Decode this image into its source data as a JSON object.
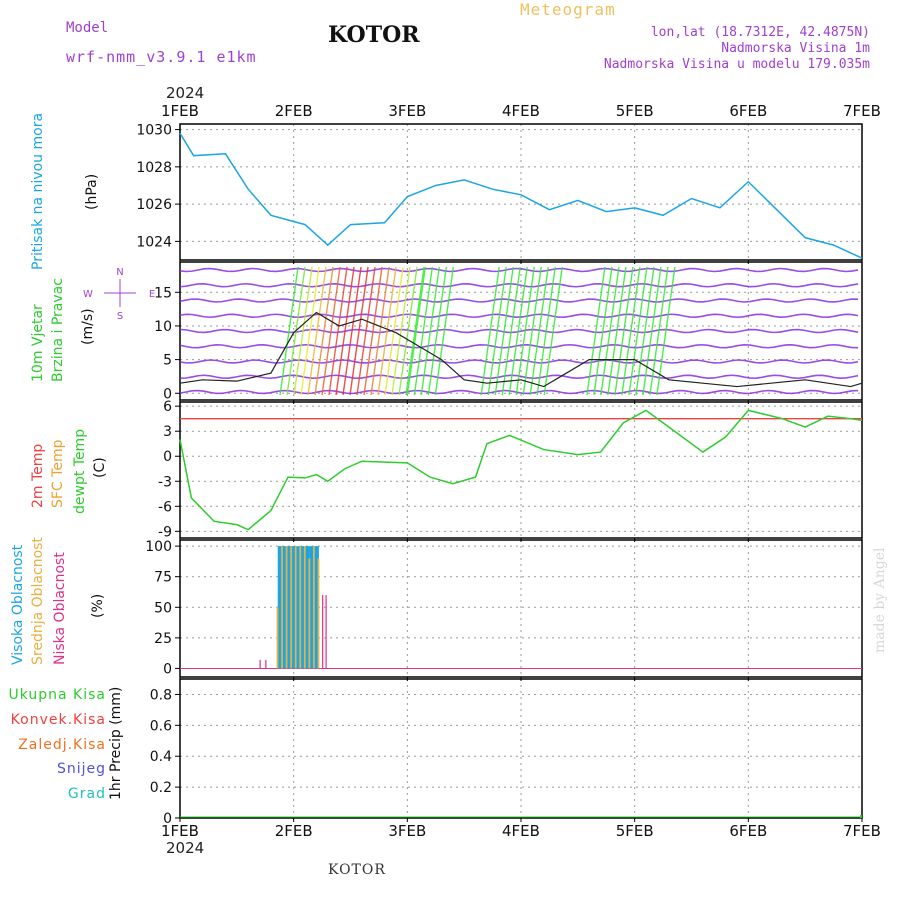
{
  "header": {
    "model_label": "Model",
    "model_name": "wrf-nmm_v3.9.1  e1km",
    "station": "KOTOR",
    "chart_title": "Meteogram",
    "lonlat": "lon,lat (18.7312E, 42.4875N)",
    "elevation": "Nadmorska Visina 1m",
    "model_elevation": "Nadmorska Visina u modelu 179.035m",
    "year_top": "2024",
    "year_bottom": "2024",
    "footer_station": "KOTOR",
    "watermark": "made by Angel"
  },
  "colors": {
    "pressure": "#1ba6e3",
    "dewpoint": "#2ecc2e",
    "temp2m": "#f04040",
    "sfc_temp": "#f0a030",
    "model_text": "#a040d0",
    "title_orange": "#f0c060",
    "high_cloud": "#1ba6e3",
    "mid_cloud": "#e8b040",
    "low_cloud": "#e0308a"
  },
  "chart_data": [
    {
      "type": "line",
      "panel": "pressure",
      "ylabel_rot": "Pritisak na nivou mora",
      "unit": "(hPa)",
      "x": [
        "1FEB",
        "2FEB",
        "3FEB",
        "4FEB",
        "5FEB",
        "6FEB",
        "7FEB"
      ],
      "yticks": [
        "1030",
        "1028",
        "1026",
        "1024"
      ],
      "ylim": [
        1023,
        1030.3
      ],
      "series": [
        {
          "values": [
            1029.8,
            1028.6,
            1028.7,
            1026.8,
            1025.4,
            1024.9,
            1023.8,
            1024.9,
            1025.0,
            1026.4,
            1027.0,
            1027.3,
            1026.8,
            1026.5,
            1025.7,
            1026.2,
            1025.6,
            1025.8,
            1025.4,
            1026.3,
            1025.8,
            1027.2,
            1025.7,
            1024.2,
            1023.8,
            1023.1
          ],
          "x": [
            0,
            0.12,
            0.4,
            0.6,
            0.8,
            1.1,
            1.3,
            1.5,
            1.8,
            2.0,
            2.25,
            2.5,
            2.75,
            3.0,
            3.25,
            3.5,
            3.75,
            4.0,
            4.25,
            4.5,
            4.75,
            5.0,
            5.25,
            5.5,
            5.75,
            6.0
          ]
        }
      ]
    },
    {
      "type": "line",
      "panel": "wind",
      "ylabel_rot_1": "10m Vjetar",
      "ylabel_rot_2": "Brzina i Pravac",
      "unit": "(m/s)",
      "yticks": [
        "15",
        "10",
        "5",
        "0"
      ],
      "ylim": [
        -1,
        19.5
      ],
      "compass": {
        "w": "W",
        "e": "E",
        "n": "N",
        "s": "S"
      },
      "series": [
        {
          "values": [
            1.5,
            2,
            1.8,
            3,
            9,
            12,
            10,
            11,
            9,
            7,
            5,
            2,
            1.5,
            2,
            1,
            3,
            5,
            5,
            2,
            1.5,
            1,
            1.5,
            2,
            1.5,
            1,
            1.5
          ],
          "x": [
            0,
            0.2,
            0.5,
            0.8,
            1.0,
            1.2,
            1.4,
            1.6,
            1.9,
            2.1,
            2.3,
            2.5,
            2.7,
            3.0,
            3.2,
            3.4,
            3.6,
            4.0,
            4.3,
            4.6,
            4.9,
            5.2,
            5.5,
            5.7,
            5.9,
            6.0
          ]
        }
      ]
    },
    {
      "type": "line",
      "panel": "temperature",
      "ylabel_rot_1": "2m Temp",
      "ylabel_rot_2": "SFC Temp",
      "ylabel_rot_3": "dewpt Temp",
      "unit": "(C)",
      "yticks": [
        "6",
        "3",
        "0",
        "-3",
        "-6",
        "-9"
      ],
      "ylim": [
        -9.8,
        6.5
      ],
      "series": [
        {
          "values": [
            2,
            -5,
            -7.8,
            -8.2,
            -8.8,
            -6.5,
            -2.5,
            -2.6,
            -2.2,
            -3.0,
            -1.5,
            -0.6,
            -0.8,
            -2.5,
            -3.3,
            -2.5,
            1.5,
            2.5,
            0.8,
            0.2,
            0.5,
            4.0,
            5.5,
            3.5,
            0.5,
            2.3,
            5.5,
            4.5,
            3.5,
            4.8,
            4.5,
            4.3
          ],
          "x": [
            0,
            0.1,
            0.3,
            0.5,
            0.6,
            0.8,
            0.95,
            1.1,
            1.2,
            1.3,
            1.45,
            1.6,
            2.0,
            2.2,
            2.4,
            2.6,
            2.7,
            2.9,
            3.2,
            3.5,
            3.7,
            3.9,
            4.1,
            4.3,
            4.6,
            4.8,
            5.0,
            5.3,
            5.5,
            5.7,
            5.9,
            6.0
          ]
        },
        {
          "values": [
            4.5,
            4.5,
            4.5,
            4.5,
            4.5,
            4.5,
            4.5,
            4.5,
            4.5,
            4.5,
            4.5
          ],
          "x": [
            0,
            0.6,
            1.1,
            1.2,
            2.0,
            2.5,
            3.0,
            3.5,
            4.0,
            5.0,
            6.0
          ]
        }
      ]
    },
    {
      "type": "bar",
      "panel": "cloud",
      "ylabel_rot_1": "Visoka Oblacnost",
      "ylabel_rot_2": "Srednja Oblacnost",
      "ylabel_rot_3": "Niska Oblacnost",
      "unit": "(%)",
      "yticks": [
        "100",
        "75",
        "50",
        "25",
        "0"
      ],
      "ylim": [
        -7,
        105
      ],
      "series": [
        {
          "name": "Visoka Oblacnost",
          "x": [
            0.86,
            0.88,
            0.9,
            0.92,
            0.94,
            0.96,
            0.98,
            1.0,
            1.02,
            1.04,
            1.06,
            1.08,
            1.1,
            1.12,
            1.14,
            1.16,
            1.18,
            1.2
          ],
          "values": [
            100,
            100,
            100,
            100,
            100,
            100,
            100,
            100,
            100,
            100,
            100,
            100,
            100,
            100,
            100,
            100,
            100,
            100
          ]
        },
        {
          "name": "Srednja Oblacnost",
          "x": [
            0.85,
            0.89,
            0.93,
            0.97,
            1.01,
            1.05,
            1.09,
            1.13,
            1.17,
            1.21
          ],
          "values": [
            50,
            100,
            100,
            100,
            100,
            100,
            100,
            90,
            100,
            90
          ]
        },
        {
          "name": "Niska Oblacnost",
          "x": [
            0.7,
            0.75,
            1.25,
            1.28
          ],
          "values": [
            7,
            7,
            60,
            60
          ]
        }
      ]
    },
    {
      "type": "bar",
      "panel": "precip",
      "ylabel_rot": "1hr Precip (mm)",
      "legend": [
        "Ukupna Kisa",
        "Konvek.Kisa",
        "Zaledj.Kisa",
        "Snijeg",
        "Grad"
      ],
      "legend_colors": [
        "#2ecc2e",
        "#f04040",
        "#f07020",
        "#5050e0",
        "#20c0c0"
      ],
      "x": [
        "1FEB",
        "2FEB",
        "3FEB",
        "4FEB",
        "5FEB",
        "6FEB",
        "7FEB"
      ],
      "yticks": [
        "0.8",
        "0.6",
        "0.4",
        "0.2",
        "0"
      ],
      "ylim": [
        0,
        0.9
      ],
      "series": [
        {
          "name": "Ukupna Kisa",
          "values": [
            0,
            0,
            0,
            0,
            0,
            0,
            0.02
          ]
        }
      ]
    }
  ]
}
